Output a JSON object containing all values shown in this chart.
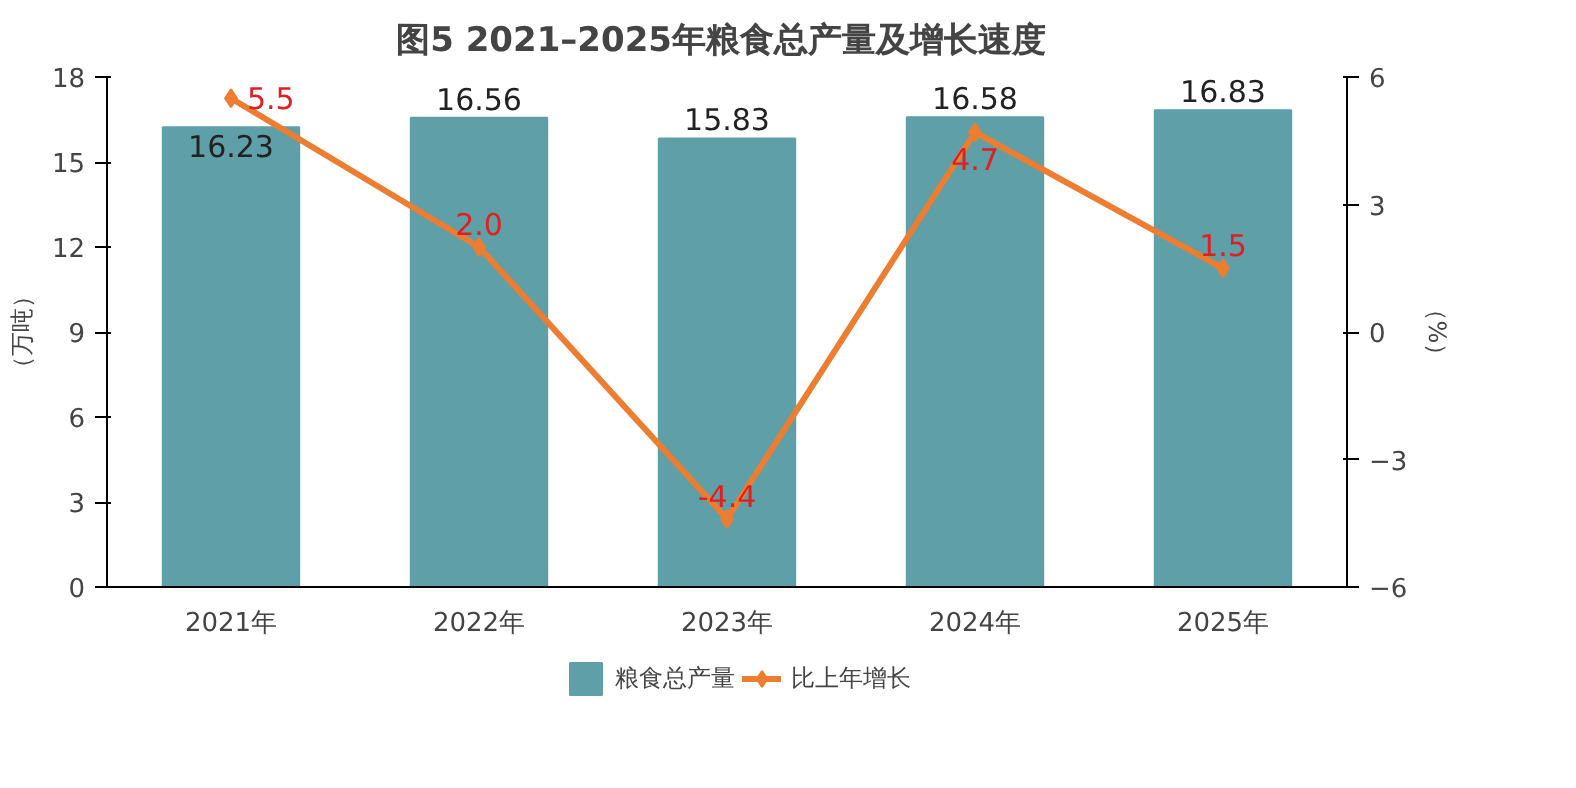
{
  "chart_data": {
    "type": "bar",
    "title": "图5  2021–2025年粮食总产量及增长速度",
    "categories": [
      "2021年",
      "2022年",
      "2023年",
      "2024年",
      "2025年"
    ],
    "ylabel": "（万吨）",
    "y2label": "（%）",
    "ylim": [
      0,
      18
    ],
    "yticks": [
      0,
      3,
      6,
      9,
      12,
      15,
      18
    ],
    "y2lim": [
      -6,
      6
    ],
    "y2ticks": [
      -6,
      -3,
      0,
      3,
      6
    ],
    "series": [
      {
        "name": "粮食总产量",
        "color": "#5f9fa8",
        "values": [
          16.23,
          16.56,
          15.83,
          16.58,
          16.83
        ]
      },
      {
        "name": "比上年增长",
        "type": "line",
        "axis": "y2",
        "color": "#ed7d31",
        "marker": "diamond",
        "values": [
          5.5,
          2.0,
          -4.4,
          4.7,
          1.5
        ],
        "value_labels": [
          "5.5",
          "2.0",
          "-4.4",
          "4.7",
          "1.5"
        ]
      }
    ],
    "data_labels": true,
    "legend": "bottom",
    "grid": false
  }
}
